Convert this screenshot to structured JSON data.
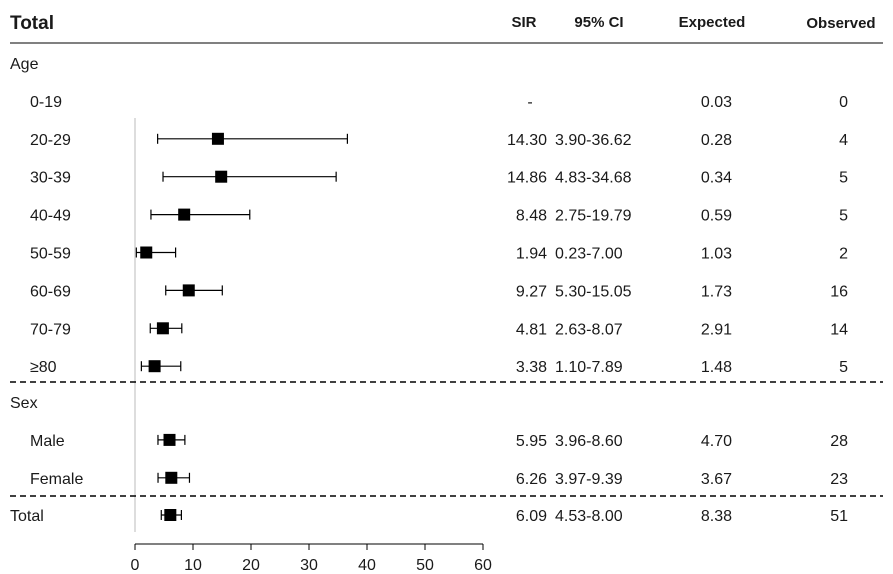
{
  "header": {
    "title": "Total",
    "col_sir": "SIR",
    "col_ci": "95% CI",
    "col_expected": "Expected",
    "col_observed": "Observed"
  },
  "chart_data": {
    "type": "forest",
    "xlim": [
      0,
      60
    ],
    "x_ticks": [
      "0",
      "10",
      "20",
      "30",
      "40",
      "50",
      "60"
    ],
    "groups": [
      {
        "label": "Age",
        "rows": [
          {
            "label": "0-19",
            "sir": null,
            "lo": null,
            "hi": null,
            "sir_text": "-",
            "ci_text": "",
            "expected": "0.03",
            "observed": "0"
          },
          {
            "label": "20-29",
            "sir": 14.3,
            "lo": 3.9,
            "hi": 36.62,
            "sir_text": "14.30",
            "ci_text": "3.90-36.62",
            "expected": "0.28",
            "observed": "4"
          },
          {
            "label": "30-39",
            "sir": 14.86,
            "lo": 4.83,
            "hi": 34.68,
            "sir_text": "14.86",
            "ci_text": "4.83-34.68",
            "expected": "0.34",
            "observed": "5"
          },
          {
            "label": "40-49",
            "sir": 8.48,
            "lo": 2.75,
            "hi": 19.79,
            "sir_text": "8.48",
            "ci_text": "2.75-19.79",
            "expected": "0.59",
            "observed": "5"
          },
          {
            "label": "50-59",
            "sir": 1.94,
            "lo": 0.23,
            "hi": 7.0,
            "sir_text": "1.94",
            "ci_text": "0.23-7.00",
            "expected": "1.03",
            "observed": "2"
          },
          {
            "label": "60-69",
            "sir": 9.27,
            "lo": 5.3,
            "hi": 15.05,
            "sir_text": "9.27",
            "ci_text": "5.30-15.05",
            "expected": "1.73",
            "observed": "16"
          },
          {
            "label": "70-79",
            "sir": 4.81,
            "lo": 2.63,
            "hi": 8.07,
            "sir_text": "4.81",
            "ci_text": "2.63-8.07",
            "expected": "2.91",
            "observed": "14"
          },
          {
            "label": "≥80",
            "sir": 3.38,
            "lo": 1.1,
            "hi": 7.89,
            "sir_text": "3.38",
            "ci_text": "1.10-7.89",
            "expected": "1.48",
            "observed": "5"
          }
        ]
      },
      {
        "label": "Sex",
        "rows": [
          {
            "label": "Male",
            "sir": 5.95,
            "lo": 3.96,
            "hi": 8.6,
            "sir_text": "5.95",
            "ci_text": "3.96-8.60",
            "expected": "4.70",
            "observed": "28"
          },
          {
            "label": "Female",
            "sir": 6.26,
            "lo": 3.97,
            "hi": 9.39,
            "sir_text": "6.26",
            "ci_text": "3.97-9.39",
            "expected": "3.67",
            "observed": "23"
          }
        ]
      }
    ],
    "total": {
      "label": "Total",
      "sir": 6.09,
      "lo": 4.53,
      "hi": 8.0,
      "sir_text": "6.09",
      "ci_text": "4.53-8.00",
      "expected": "8.38",
      "observed": "51"
    }
  }
}
